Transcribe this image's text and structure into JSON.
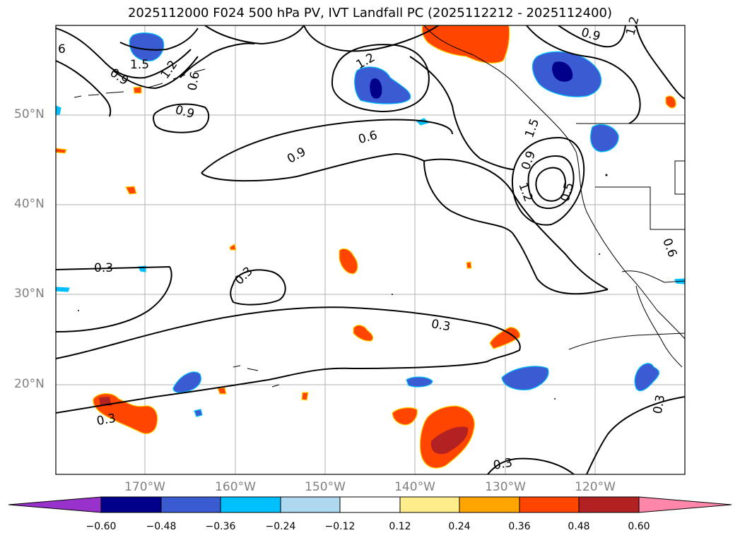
{
  "title": "2025112000 F024 500 hPa PV, IVT Landfall PC (2025112212 - 2025112400)",
  "latitude_labels": [
    "50°N",
    "40°N",
    "30°N",
    "20°N"
  ],
  "longitude_labels": [
    "170°W",
    "160°W",
    "150°W",
    "140°W",
    "130°W",
    "120°W"
  ],
  "contour_labels": [
    "6",
    "1.5",
    "1.2",
    "0.9",
    "0.6",
    "0.9",
    "1.2",
    "0.9",
    "0.6",
    "0.9",
    "1.2",
    "0.5",
    "0.9",
    "1.2",
    "1.5",
    "0.6",
    "0.3",
    "0.3",
    "0.3",
    "0.3",
    "0.3",
    "0.3"
  ],
  "colorbar": {
    "ticks": [
      "−0.60",
      "−0.48",
      "−0.36",
      "−0.24",
      "−0.12",
      "0.12",
      "0.24",
      "0.36",
      "0.48",
      "0.60"
    ],
    "colors": [
      "#9932cc",
      "#00008b",
      "#3a5bd1",
      "#00bfff",
      "#add8f0",
      "#ffffff",
      "#ffec8b",
      "#ffa500",
      "#ff4500",
      "#b22222",
      "#ff88aa"
    ]
  },
  "colors": {
    "contour": "#000000",
    "grid": "#b0b0b0",
    "axis_label": "#808080"
  }
}
